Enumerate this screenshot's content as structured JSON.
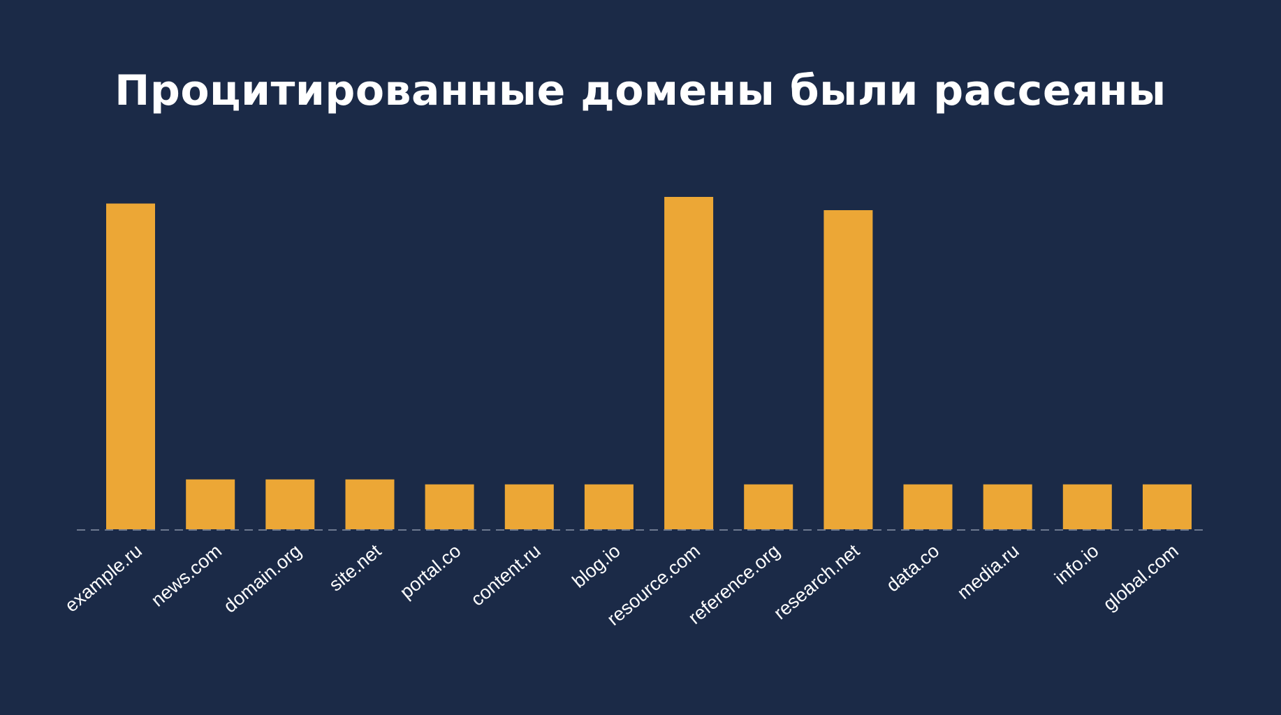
{
  "colors": {
    "background": "#1b2a47",
    "bar": "#eca736",
    "baseline": "#6e7a90",
    "text": "#ffffff"
  },
  "chart_data": {
    "type": "bar",
    "title": "Процитированные домены были рассеяны",
    "xlabel": "",
    "ylabel": "",
    "grid": false,
    "legend": "none",
    "ylim": [
      0,
      100
    ],
    "categories": [
      "example.ru",
      "news.com",
      "domain.org",
      "site.net",
      "portal.co",
      "content.ru",
      "blog.io",
      "resource.com",
      "reference.org",
      "research.net",
      "data.co",
      "media.ru",
      "info.io",
      "global.com"
    ],
    "values": [
      98,
      15,
      15,
      15,
      13.5,
      13.5,
      13.5,
      100,
      13.5,
      96,
      13.5,
      13.5,
      13.5,
      13.5
    ]
  }
}
